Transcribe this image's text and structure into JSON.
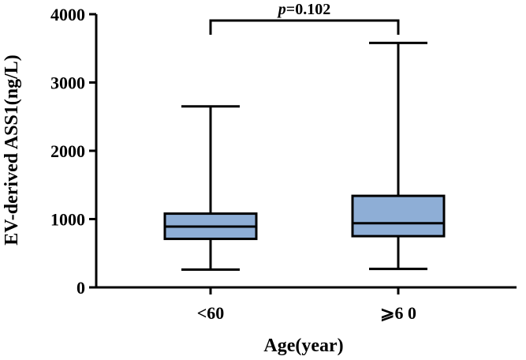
{
  "chart_data": {
    "type": "box",
    "xlabel": "Age(year)",
    "ylabel": "EV-derived ASS1(ng/L)",
    "ylim": [
      0,
      4000
    ],
    "yticks": [
      0,
      1000,
      2000,
      3000,
      4000
    ],
    "grid": false,
    "box_color": "#8eaed6",
    "categories": [
      "<60",
      "⩾6 0"
    ],
    "boxes": [
      {
        "category": "<60",
        "min": 260,
        "q1": 710,
        "median": 890,
        "q3": 1080,
        "max": 2650
      },
      {
        "category": "⩾6 0",
        "min": 270,
        "q1": 750,
        "median": 940,
        "q3": 1340,
        "max": 3580
      }
    ],
    "annotation": {
      "italic": "p",
      "text": "=0.102"
    }
  }
}
